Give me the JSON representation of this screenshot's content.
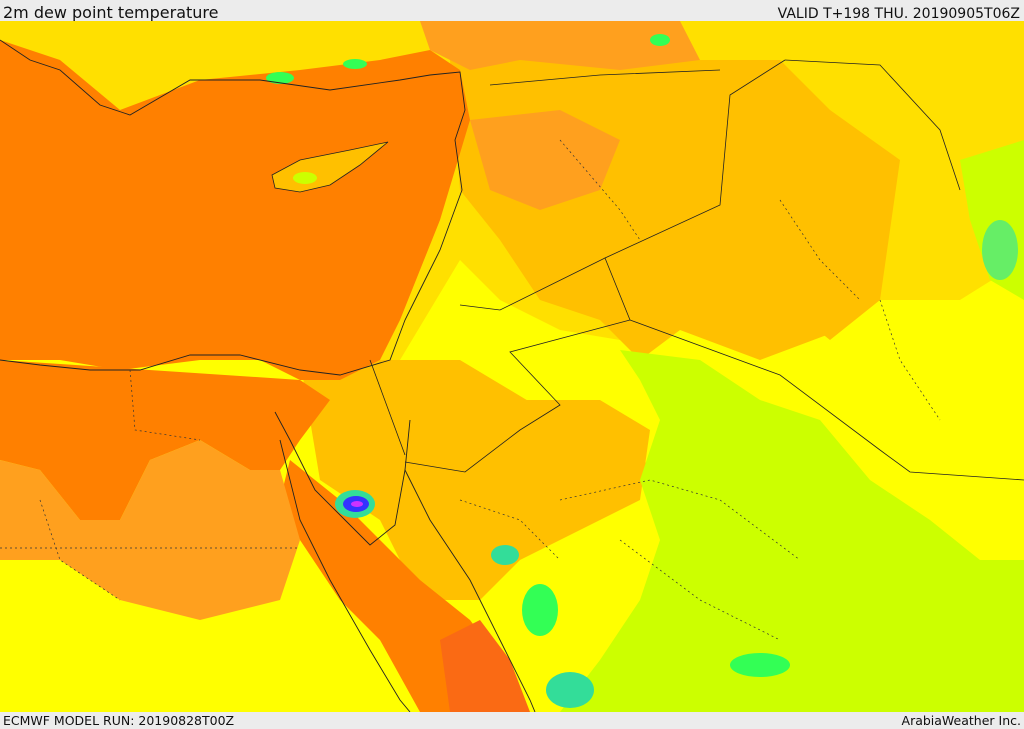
{
  "header": {
    "title": "2m dew point temperature",
    "valid_label": "VALID T+198 THU. 20190905T06Z"
  },
  "footer": {
    "model_run": "ECMWF MODEL RUN: 20190828T00Z",
    "credit": "ArabiaWeather Inc."
  },
  "colors": {
    "dark_orange": "#fa6a14",
    "orange": "#ff8000",
    "light_orange": "#ffa01e",
    "amber": "#ffc000",
    "gold": "#ffe000",
    "yellow": "#ffff00",
    "yellow_green": "#ccff00",
    "green": "#33ff55",
    "teal": "#33dd99",
    "blue": "#3333ff",
    "magenta": "#cc33ff"
  }
}
